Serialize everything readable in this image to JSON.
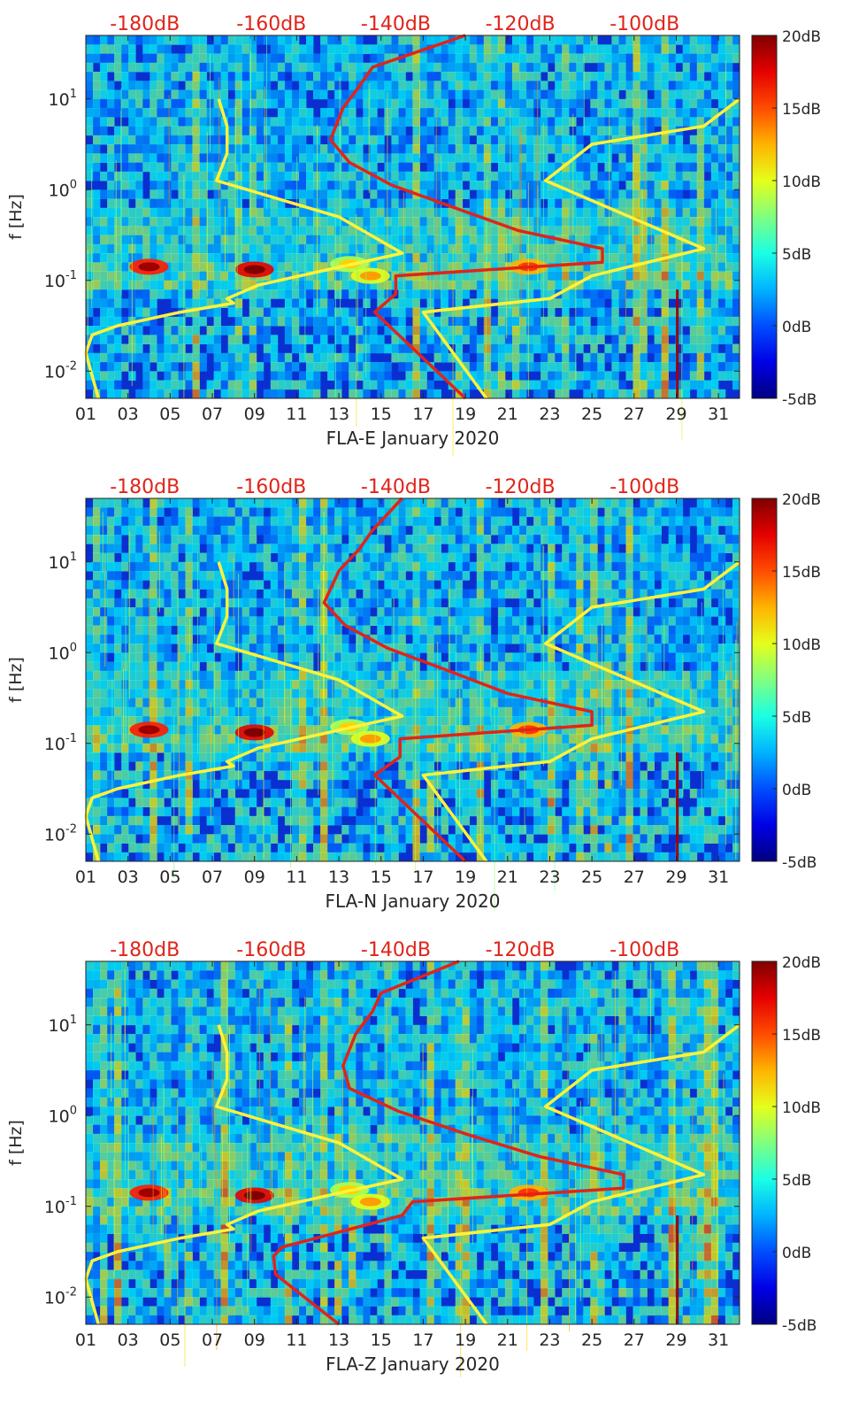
{
  "chart_data": [
    {
      "type": "heatmap",
      "title": "FLA-E January 2020",
      "xlabel": "FLA-E January 2020",
      "ylabel": "f [Hz]",
      "x_range": [
        1,
        32
      ],
      "y_range_log10": [
        -2.3,
        1.7
      ],
      "x_ticks": [
        "01",
        "03",
        "05",
        "07",
        "09",
        "11",
        "13",
        "15",
        "17",
        "19",
        "21",
        "23",
        "25",
        "27",
        "29",
        "31"
      ],
      "y_ticks": [
        {
          "value": -2,
          "base": "10",
          "exp": "-2"
        },
        {
          "value": -1,
          "base": "10",
          "exp": "-1"
        },
        {
          "value": 0,
          "base": "10",
          "exp": "0"
        },
        {
          "value": 1,
          "base": "10",
          "exp": "1"
        }
      ],
      "top_labels": [
        "-180dB",
        "-160dB",
        "-140dB",
        "-120dB",
        "-100dB"
      ],
      "top_label_day_positions": [
        3.8,
        9.8,
        15.7,
        21.6,
        27.5
      ],
      "colorbar_range_dB": [
        -5,
        20
      ],
      "colorbar_ticks": [
        "20dB",
        "15dB",
        "10dB",
        "5dB",
        "0dB",
        "-5dB"
      ],
      "series": [
        {
          "name": "yellow curve (left)",
          "color": "#fff23a",
          "points": [
            [
              1.6,
              -2.3
            ],
            [
              1.0,
              -1.8
            ],
            [
              1.3,
              -1.6
            ],
            [
              2.5,
              -1.5
            ],
            [
              5.5,
              -1.35
            ],
            [
              8.0,
              -1.25
            ],
            [
              7.7,
              -1.2
            ],
            [
              9.2,
              -1.05
            ],
            [
              16.0,
              -0.7
            ],
            [
              13.0,
              -0.3
            ],
            [
              7.2,
              0.1
            ],
            [
              7.7,
              0.4
            ],
            [
              7.7,
              0.7
            ],
            [
              7.3,
              1.0
            ]
          ]
        },
        {
          "name": "yellow curve (right)",
          "color": "#fff23a",
          "points": [
            [
              20.0,
              -2.3
            ],
            [
              17.0,
              -1.35
            ],
            [
              23.0,
              -1.2
            ],
            [
              25.0,
              -0.95
            ],
            [
              30.3,
              -0.65
            ],
            [
              22.8,
              0.1
            ],
            [
              25.0,
              0.5
            ],
            [
              30.3,
              0.7
            ],
            [
              32.0,
              1.0
            ]
          ]
        },
        {
          "name": "red curve",
          "color": "#e0241a",
          "points": [
            [
              19.0,
              -2.3
            ],
            [
              14.7,
              -1.35
            ],
            [
              15.7,
              -1.15
            ],
            [
              15.7,
              -0.95
            ],
            [
              25.5,
              -0.8
            ],
            [
              25.5,
              -0.65
            ],
            [
              21.5,
              -0.45
            ],
            [
              18.5,
              -0.2
            ],
            [
              15.5,
              0.05
            ],
            [
              13.5,
              0.3
            ],
            [
              12.6,
              0.55
            ],
            [
              13.2,
              0.9
            ],
            [
              14.0,
              1.15
            ],
            [
              14.6,
              1.35
            ],
            [
              19.0,
              1.7
            ]
          ]
        }
      ]
    },
    {
      "type": "heatmap",
      "title": "FLA-N January 2020",
      "xlabel": "FLA-N January 2020",
      "ylabel": "f [Hz]",
      "x_range": [
        1,
        32
      ],
      "y_range_log10": [
        -2.3,
        1.7
      ],
      "x_ticks": [
        "01",
        "03",
        "05",
        "07",
        "09",
        "11",
        "13",
        "15",
        "17",
        "19",
        "21",
        "23",
        "25",
        "27",
        "29",
        "31"
      ],
      "y_ticks": [
        {
          "value": -2,
          "base": "10",
          "exp": "-2"
        },
        {
          "value": -1,
          "base": "10",
          "exp": "-1"
        },
        {
          "value": 0,
          "base": "10",
          "exp": "0"
        },
        {
          "value": 1,
          "base": "10",
          "exp": "1"
        }
      ],
      "top_labels": [
        "-180dB",
        "-160dB",
        "-140dB",
        "-120dB",
        "-100dB"
      ],
      "top_label_day_positions": [
        3.8,
        9.8,
        15.7,
        21.6,
        27.5
      ],
      "colorbar_range_dB": [
        -5,
        20
      ],
      "colorbar_ticks": [
        "20dB",
        "15dB",
        "10dB",
        "5dB",
        "0dB",
        "-5dB"
      ],
      "series": [
        {
          "name": "yellow curve (left)",
          "color": "#fff23a",
          "points": [
            [
              1.6,
              -2.3
            ],
            [
              1.0,
              -1.8
            ],
            [
              1.3,
              -1.6
            ],
            [
              2.5,
              -1.5
            ],
            [
              5.5,
              -1.35
            ],
            [
              8.0,
              -1.25
            ],
            [
              7.7,
              -1.2
            ],
            [
              9.2,
              -1.05
            ],
            [
              16.0,
              -0.7
            ],
            [
              13.0,
              -0.3
            ],
            [
              7.2,
              0.1
            ],
            [
              7.7,
              0.4
            ],
            [
              7.7,
              0.7
            ],
            [
              7.3,
              1.0
            ]
          ]
        },
        {
          "name": "yellow curve (right)",
          "color": "#fff23a",
          "points": [
            [
              20.0,
              -2.3
            ],
            [
              17.0,
              -1.35
            ],
            [
              23.0,
              -1.2
            ],
            [
              25.0,
              -0.95
            ],
            [
              30.3,
              -0.65
            ],
            [
              22.8,
              0.1
            ],
            [
              25.0,
              0.5
            ],
            [
              30.3,
              0.7
            ],
            [
              32.0,
              1.0
            ]
          ]
        },
        {
          "name": "red curve",
          "color": "#e0241a",
          "points": [
            [
              19.0,
              -2.3
            ],
            [
              14.7,
              -1.35
            ],
            [
              15.9,
              -1.15
            ],
            [
              15.9,
              -0.95
            ],
            [
              25.0,
              -0.8
            ],
            [
              25.0,
              -0.65
            ],
            [
              21.0,
              -0.45
            ],
            [
              18.2,
              -0.2
            ],
            [
              15.3,
              0.05
            ],
            [
              13.3,
              0.3
            ],
            [
              12.3,
              0.55
            ],
            [
              13.0,
              0.9
            ],
            [
              14.0,
              1.15
            ],
            [
              14.6,
              1.35
            ],
            [
              16.0,
              1.7
            ]
          ]
        }
      ]
    },
    {
      "type": "heatmap",
      "title": "FLA-Z January 2020",
      "xlabel": "FLA-Z January 2020",
      "ylabel": "f [Hz]",
      "x_range": [
        1,
        32
      ],
      "y_range_log10": [
        -2.3,
        1.7
      ],
      "x_ticks": [
        "01",
        "03",
        "05",
        "07",
        "09",
        "11",
        "13",
        "15",
        "17",
        "19",
        "21",
        "23",
        "25",
        "27",
        "29",
        "31"
      ],
      "y_ticks": [
        {
          "value": -2,
          "base": "10",
          "exp": "-2"
        },
        {
          "value": -1,
          "base": "10",
          "exp": "-1"
        },
        {
          "value": 0,
          "base": "10",
          "exp": "0"
        },
        {
          "value": 1,
          "base": "10",
          "exp": "1"
        }
      ],
      "top_labels": [
        "-180dB",
        "-160dB",
        "-140dB",
        "-120dB",
        "-100dB"
      ],
      "top_label_day_positions": [
        3.8,
        9.8,
        15.7,
        21.6,
        27.5
      ],
      "colorbar_range_dB": [
        -5,
        20
      ],
      "colorbar_ticks": [
        "20dB",
        "15dB",
        "10dB",
        "5dB",
        "0dB",
        "-5dB"
      ],
      "series": [
        {
          "name": "yellow curve (left)",
          "color": "#fff23a",
          "points": [
            [
              1.6,
              -2.3
            ],
            [
              1.0,
              -1.8
            ],
            [
              1.3,
              -1.6
            ],
            [
              2.5,
              -1.5
            ],
            [
              5.5,
              -1.35
            ],
            [
              8.0,
              -1.25
            ],
            [
              7.7,
              -1.2
            ],
            [
              9.2,
              -1.05
            ],
            [
              16.0,
              -0.7
            ],
            [
              13.0,
              -0.3
            ],
            [
              7.2,
              0.1
            ],
            [
              7.7,
              0.4
            ],
            [
              7.7,
              0.7
            ],
            [
              7.3,
              1.0
            ]
          ]
        },
        {
          "name": "yellow curve (right)",
          "color": "#fff23a",
          "points": [
            [
              20.0,
              -2.3
            ],
            [
              17.0,
              -1.35
            ],
            [
              23.0,
              -1.2
            ],
            [
              25.0,
              -0.95
            ],
            [
              30.3,
              -0.65
            ],
            [
              22.8,
              0.1
            ],
            [
              25.0,
              0.5
            ],
            [
              30.3,
              0.7
            ],
            [
              32.0,
              1.0
            ]
          ]
        },
        {
          "name": "red curve",
          "color": "#e0241a",
          "points": [
            [
              13.0,
              -2.3
            ],
            [
              10.0,
              -1.75
            ],
            [
              9.9,
              -1.55
            ],
            [
              10.3,
              -1.45
            ],
            [
              16.0,
              -1.1
            ],
            [
              16.5,
              -0.95
            ],
            [
              26.5,
              -0.8
            ],
            [
              26.5,
              -0.65
            ],
            [
              22.5,
              -0.45
            ],
            [
              19.0,
              -0.2
            ],
            [
              15.8,
              0.05
            ],
            [
              13.5,
              0.3
            ],
            [
              13.2,
              0.55
            ],
            [
              13.8,
              0.9
            ],
            [
              14.6,
              1.15
            ],
            [
              15.0,
              1.35
            ],
            [
              18.7,
              1.7
            ]
          ]
        }
      ]
    }
  ]
}
